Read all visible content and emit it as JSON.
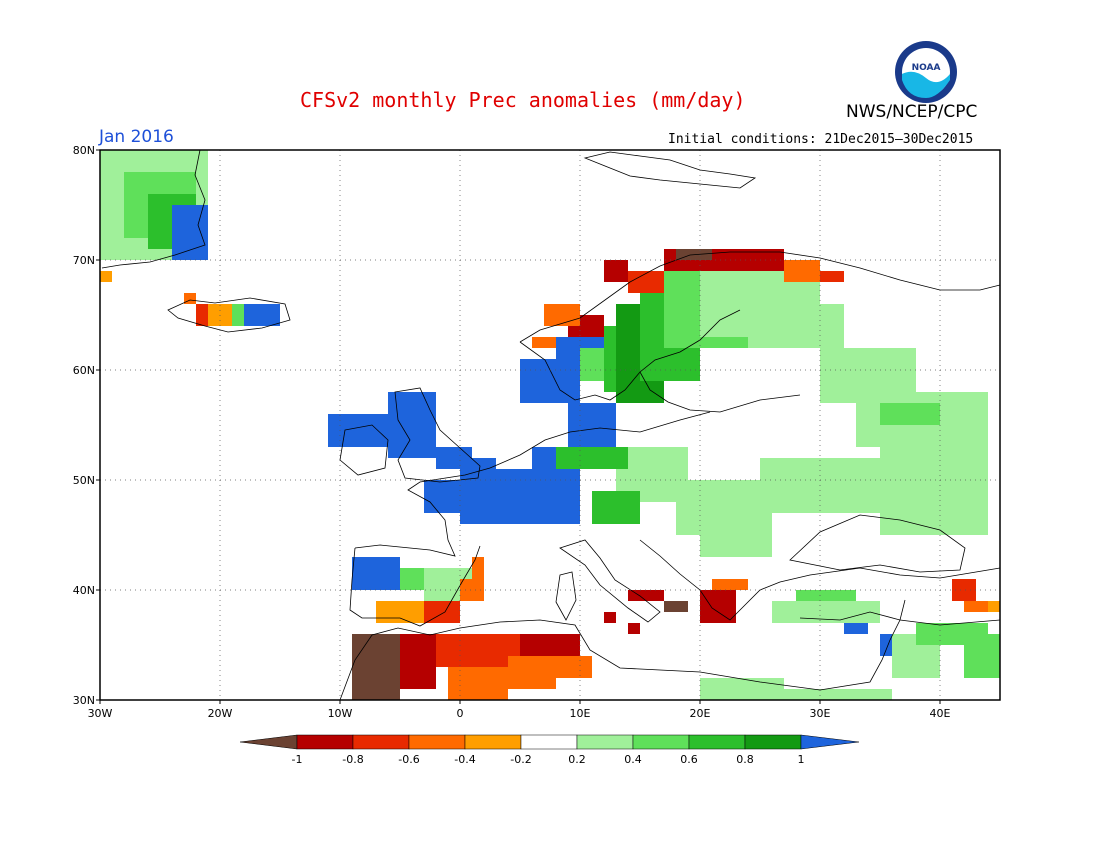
{
  "header": {
    "title": "CFSv2 monthly Prec anomalies (mm/day)",
    "agency": "NWS/NCEP/CPC",
    "month": "Jan 2016",
    "initial_conditions": "Initial conditions: 21Dec2015–30Dec2015",
    "logo_text": "NOAA"
  },
  "map": {
    "lon_range": [
      -30,
      45
    ],
    "lat_range": [
      30,
      80
    ],
    "lon_ticks": [
      "30W",
      "20W",
      "10W",
      "0",
      "10E",
      "20E",
      "30E",
      "40E"
    ],
    "lat_ticks": [
      "80N",
      "70N",
      "60N",
      "50N",
      "40N",
      "30N"
    ]
  },
  "colorbar": {
    "labels": [
      "-1",
      "-0.8",
      "-0.6",
      "-0.4",
      "-0.2",
      "0.2",
      "0.4",
      "0.6",
      "0.8",
      "1"
    ],
    "colors": [
      "#6b4232",
      "#b50000",
      "#e82a00",
      "#ff6a00",
      "#ff9e00",
      "#ffffff",
      "#a0f09a",
      "#5fe05a",
      "#2cbf2c",
      "#139a13",
      "#1e64dc"
    ]
  }
}
